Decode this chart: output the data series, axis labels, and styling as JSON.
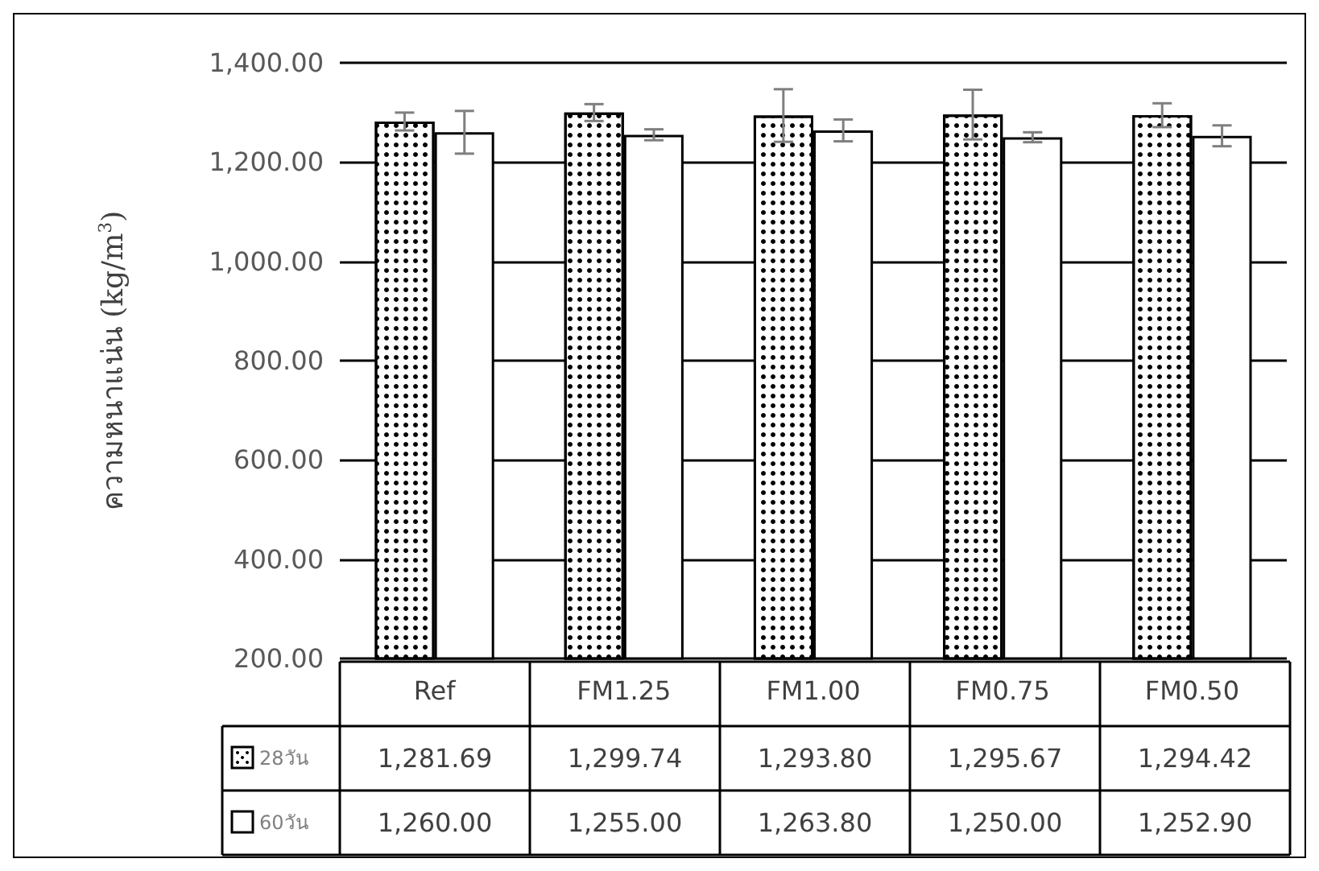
{
  "chart_data": {
    "type": "bar",
    "ylabel": "ความหนาแน่น (kg/m$^{3}$)",
    "categories": [
      "Ref",
      "FM1.25",
      "FM1.00",
      "FM0.75",
      "FM0.50"
    ],
    "series": [
      {
        "name": "28วัน",
        "color": "#ffffff",
        "values": [
          1281.69,
          1299.74,
          1293.8,
          1295.67,
          1294.42
        ],
        "errors": [
          18,
          17,
          53,
          50,
          24
        ],
        "value_labels": [
          "1,281.69",
          "1,299.74",
          "1,293.80",
          "1,295.67",
          "1,294.42"
        ]
      },
      {
        "name": "60วัน",
        "color": "#ffffff",
        "values": [
          1260.0,
          1255.0,
          1263.8,
          1250.0,
          1252.9
        ],
        "errors": [
          43,
          11,
          22,
          10,
          21
        ],
        "value_labels": [
          "1,260.00",
          "1,255.00",
          "1,263.80",
          "1,250.00",
          "1,252.90"
        ]
      }
    ],
    "ylim": [
      200,
      1400
    ],
    "yticks": [
      {
        "value": 200,
        "label": "200.00"
      },
      {
        "value": 400,
        "label": "400.00"
      },
      {
        "value": 600,
        "label": "600.00"
      },
      {
        "value": 800,
        "label": "800.00"
      },
      {
        "value": 1000,
        "label": "1,000.00"
      },
      {
        "value": 1200,
        "label": "1,200.00"
      },
      {
        "value": 1400,
        "label": "1,400.00"
      }
    ],
    "grid": "y",
    "legend": "bottom left"
  }
}
